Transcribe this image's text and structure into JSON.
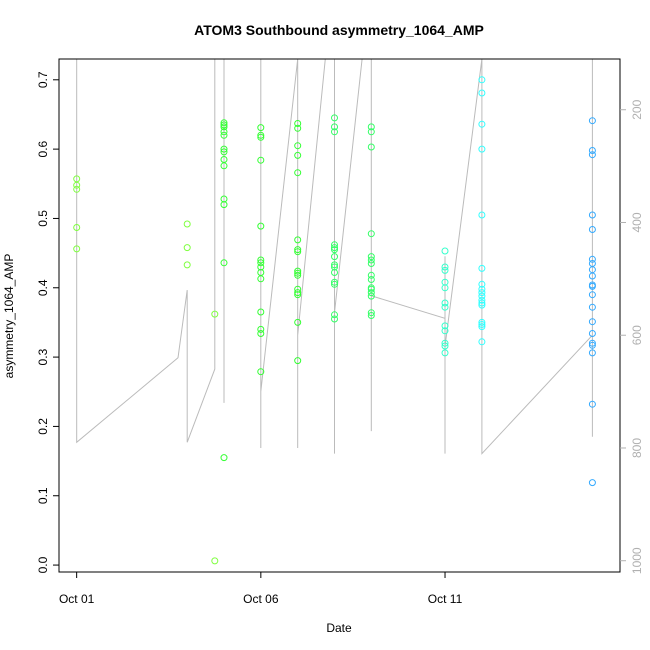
{
  "chart_data": {
    "type": "scatter",
    "title": "ATOM3 Southbound asymmetry_1064_AMP",
    "xlabel": "Date",
    "ylabel": "asymmetry_1064_AMP",
    "ylabel_right": "",
    "grid": false,
    "legend": "none",
    "x_ticks": [
      {
        "value": "2016-10-01",
        "label": "Oct 01"
      },
      {
        "value": "2016-10-06",
        "label": "Oct 06"
      },
      {
        "value": "2016-10-11",
        "label": "Oct 11"
      }
    ],
    "xlim": [
      "2016-10-00 12:30",
      "2016-10-15 18:00"
    ],
    "ylim": [
      -0.01,
      0.73
    ],
    "y_ticks": [
      0.0,
      0.1,
      0.2,
      0.3,
      0.4,
      0.5,
      0.6,
      0.7
    ],
    "y_right_lim": [
      1020,
      110
    ],
    "y_right_ticks": [
      200,
      400,
      600,
      800,
      1000
    ],
    "series": [
      {
        "color": "#7fff3f",
        "points": [
          [
            "2016-10-01 00:00",
            0.548
          ],
          [
            "2016-10-01 00:00",
            0.557
          ],
          [
            "2016-10-01 00:00",
            0.542
          ],
          [
            "2016-10-01 00:00",
            0.487
          ],
          [
            "2016-10-01 00:00",
            0.456
          ],
          [
            "2016-10-04 00:00",
            0.492
          ],
          [
            "2016-10-04 00:00",
            0.458
          ],
          [
            "2016-10-04 00:00",
            0.433
          ],
          [
            "2016-10-04 18:00",
            0.362
          ],
          [
            "2016-10-04 18:00",
            0.006
          ]
        ]
      },
      {
        "color": "#33ff33",
        "points": [
          [
            "2016-10-05 00:00",
            0.638
          ],
          [
            "2016-10-05 00:00",
            0.635
          ],
          [
            "2016-10-05 00:00",
            0.632
          ],
          [
            "2016-10-05 00:00",
            0.625
          ],
          [
            "2016-10-05 00:00",
            0.62
          ],
          [
            "2016-10-05 00:00",
            0.6
          ],
          [
            "2016-10-05 00:00",
            0.596
          ],
          [
            "2016-10-05 00:00",
            0.585
          ],
          [
            "2016-10-05 00:00",
            0.576
          ],
          [
            "2016-10-05 00:00",
            0.528
          ],
          [
            "2016-10-05 00:00",
            0.52
          ],
          [
            "2016-10-05 00:00",
            0.436
          ],
          [
            "2016-10-05 00:00",
            0.155
          ],
          [
            "2016-10-06 00:00",
            0.631
          ],
          [
            "2016-10-06 00:00",
            0.62
          ],
          [
            "2016-10-06 00:00",
            0.617
          ],
          [
            "2016-10-06 00:00",
            0.584
          ],
          [
            "2016-10-06 00:00",
            0.489
          ],
          [
            "2016-10-06 00:00",
            0.44
          ],
          [
            "2016-10-06 00:00",
            0.436
          ],
          [
            "2016-10-06 00:00",
            0.43
          ],
          [
            "2016-10-06 00:00",
            0.422
          ],
          [
            "2016-10-06 00:00",
            0.413
          ],
          [
            "2016-10-06 00:00",
            0.365
          ],
          [
            "2016-10-06 00:00",
            0.34
          ],
          [
            "2016-10-06 00:00",
            0.334
          ],
          [
            "2016-10-06 00:00",
            0.279
          ],
          [
            "2016-10-07 00:00",
            0.637
          ],
          [
            "2016-10-07 00:00",
            0.63
          ],
          [
            "2016-10-07 00:00",
            0.605
          ],
          [
            "2016-10-07 00:00",
            0.591
          ],
          [
            "2016-10-07 00:00",
            0.566
          ],
          [
            "2016-10-07 00:00",
            0.469
          ],
          [
            "2016-10-07 00:00",
            0.455
          ],
          [
            "2016-10-07 00:00",
            0.452
          ],
          [
            "2016-10-07 00:00",
            0.424
          ],
          [
            "2016-10-07 00:00",
            0.421
          ],
          [
            "2016-10-07 00:00",
            0.418
          ],
          [
            "2016-10-07 00:00",
            0.398
          ],
          [
            "2016-10-07 00:00",
            0.393
          ],
          [
            "2016-10-07 00:00",
            0.39
          ],
          [
            "2016-10-07 00:00",
            0.35
          ],
          [
            "2016-10-07 00:00",
            0.295
          ]
        ]
      },
      {
        "color": "#33ff66",
        "points": [
          [
            "2016-10-08 00:00",
            0.645
          ],
          [
            "2016-10-08 00:00",
            0.632
          ],
          [
            "2016-10-08 00:00",
            0.625
          ],
          [
            "2016-10-08 00:00",
            0.462
          ],
          [
            "2016-10-08 00:00",
            0.458
          ],
          [
            "2016-10-08 00:00",
            0.455
          ],
          [
            "2016-10-08 00:00",
            0.445
          ],
          [
            "2016-10-08 00:00",
            0.433
          ],
          [
            "2016-10-08 00:00",
            0.43
          ],
          [
            "2016-10-08 00:00",
            0.422
          ],
          [
            "2016-10-08 00:00",
            0.408
          ],
          [
            "2016-10-08 00:00",
            0.405
          ],
          [
            "2016-10-08 00:00",
            0.361
          ],
          [
            "2016-10-08 00:00",
            0.355
          ],
          [
            "2016-10-09 00:00",
            0.632
          ],
          [
            "2016-10-09 00:00",
            0.625
          ],
          [
            "2016-10-09 00:00",
            0.603
          ],
          [
            "2016-10-09 00:00",
            0.478
          ],
          [
            "2016-10-09 00:00",
            0.445
          ],
          [
            "2016-10-09 00:00",
            0.44
          ],
          [
            "2016-10-09 00:00",
            0.435
          ],
          [
            "2016-10-09 00:00",
            0.418
          ],
          [
            "2016-10-09 00:00",
            0.412
          ],
          [
            "2016-10-09 00:00",
            0.4
          ],
          [
            "2016-10-09 00:00",
            0.398
          ],
          [
            "2016-10-09 00:00",
            0.393
          ],
          [
            "2016-10-09 00:00",
            0.388
          ],
          [
            "2016-10-09 00:00",
            0.364
          ],
          [
            "2016-10-09 00:00",
            0.36
          ]
        ]
      },
      {
        "color": "#33ffcc",
        "points": [
          [
            "2016-10-11 00:00",
            0.453
          ],
          [
            "2016-10-11 00:00",
            0.43
          ],
          [
            "2016-10-11 00:00",
            0.425
          ],
          [
            "2016-10-11 00:00",
            0.408
          ],
          [
            "2016-10-11 00:00",
            0.4
          ],
          [
            "2016-10-11 00:00",
            0.378
          ],
          [
            "2016-10-11 00:00",
            0.372
          ],
          [
            "2016-10-11 00:00",
            0.345
          ],
          [
            "2016-10-11 00:00",
            0.338
          ],
          [
            "2016-10-11 00:00",
            0.32
          ],
          [
            "2016-10-11 00:00",
            0.316
          ],
          [
            "2016-10-11 00:00",
            0.306
          ]
        ]
      },
      {
        "color": "#33ffff",
        "points": [
          [
            "2016-10-12 00:00",
            0.7
          ],
          [
            "2016-10-12 00:00",
            0.681
          ],
          [
            "2016-10-12 00:00",
            0.636
          ],
          [
            "2016-10-12 00:00",
            0.6
          ],
          [
            "2016-10-12 00:00",
            0.505
          ],
          [
            "2016-10-12 00:00",
            0.428
          ],
          [
            "2016-10-12 00:00",
            0.405
          ],
          [
            "2016-10-12 00:00",
            0.398
          ],
          [
            "2016-10-12 00:00",
            0.393
          ],
          [
            "2016-10-12 00:00",
            0.388
          ],
          [
            "2016-10-12 00:00",
            0.382
          ],
          [
            "2016-10-12 00:00",
            0.378
          ],
          [
            "2016-10-12 00:00",
            0.375
          ],
          [
            "2016-10-12 00:00",
            0.35
          ],
          [
            "2016-10-12 00:00",
            0.347
          ],
          [
            "2016-10-12 00:00",
            0.344
          ],
          [
            "2016-10-12 00:00",
            0.322
          ]
        ]
      },
      {
        "color": "#33aaff",
        "points": [
          [
            "2016-10-15 00:00",
            0.641
          ],
          [
            "2016-10-15 00:00",
            0.598
          ],
          [
            "2016-10-15 00:00",
            0.592
          ],
          [
            "2016-10-15 00:00",
            0.505
          ],
          [
            "2016-10-15 00:00",
            0.484
          ],
          [
            "2016-10-15 00:00",
            0.441
          ],
          [
            "2016-10-15 00:00",
            0.435
          ],
          [
            "2016-10-15 00:00",
            0.426
          ],
          [
            "2016-10-15 00:00",
            0.417
          ],
          [
            "2016-10-15 00:00",
            0.404
          ],
          [
            "2016-10-15 00:00",
            0.402
          ],
          [
            "2016-10-15 00:00",
            0.39
          ],
          [
            "2016-10-15 00:00",
            0.372
          ],
          [
            "2016-10-15 00:00",
            0.351
          ],
          [
            "2016-10-15 00:00",
            0.334
          ],
          [
            "2016-10-15 00:00",
            0.32
          ],
          [
            "2016-10-15 00:00",
            0.317
          ],
          [
            "2016-10-15 00:00",
            0.306
          ],
          [
            "2016-10-15 00:00",
            0.232
          ],
          [
            "2016-10-15 00:00",
            0.119
          ]
        ]
      }
    ],
    "altitude_trace": {
      "color": "#bbbbbb",
      "points": [
        [
          "2016-10-01 00:00",
          110
        ],
        [
          "2016-10-01 00:00",
          790
        ],
        [
          "2016-10-03 18:00",
          640
        ],
        [
          "2016-10-04 00:00",
          520
        ],
        [
          "2016-10-04 00:00",
          790
        ],
        [
          "2016-10-04 18:00",
          660
        ],
        [
          "2016-10-04 18:00",
          110
        ],
        [
          "2016-10-05 00:00",
          110
        ],
        [
          "2016-10-05 00:00",
          720
        ],
        [
          "2016-10-05 00:00",
          110
        ],
        [
          "2016-10-05 00:00",
          700
        ],
        [
          "2016-10-05 00:00",
          110
        ],
        [
          "2016-10-06 00:00",
          110
        ],
        [
          "2016-10-06 00:00",
          760
        ],
        [
          "2016-10-06 00:00",
          110
        ],
        [
          "2016-10-06 00:00",
          800
        ],
        [
          "2016-10-06 00:00",
          700
        ],
        [
          "2016-10-07 00:00",
          110
        ],
        [
          "2016-10-07 00:00",
          760
        ],
        [
          "2016-10-07 00:00",
          110
        ],
        [
          "2016-10-07 00:00",
          800
        ],
        [
          "2016-10-07 00:00",
          600
        ],
        [
          "2016-10-07 18:00",
          110
        ],
        [
          "2016-10-08 00:00",
          110
        ],
        [
          "2016-10-08 00:00",
          780
        ],
        [
          "2016-10-08 00:00",
          110
        ],
        [
          "2016-10-08 00:00",
          810
        ],
        [
          "2016-10-08 00:00",
          560
        ],
        [
          "2016-10-08 18:00",
          110
        ],
        [
          "2016-10-09 00:00",
          110
        ],
        [
          "2016-10-09 00:00",
          760
        ],
        [
          "2016-10-09 00:00",
          110
        ],
        [
          "2016-10-09 00:00",
          770
        ],
        [
          "2016-10-09 00:00",
          530
        ],
        [
          "2016-10-11 00:00",
          570
        ],
        [
          "2016-10-11 00:00",
          480
        ],
        [
          "2016-10-11 00:00",
          770
        ],
        [
          "2016-10-11 00:00",
          460
        ],
        [
          "2016-10-11 00:00",
          810
        ],
        [
          "2016-10-11 00:00",
          620
        ],
        [
          "2016-10-12 00:00",
          110
        ],
        [
          "2016-10-12 00:00",
          720
        ],
        [
          "2016-10-12 00:00",
          110
        ],
        [
          "2016-10-12 00:00",
          760
        ],
        [
          "2016-10-12 00:00",
          630
        ],
        [
          "2016-10-12 00:00",
          810
        ],
        [
          "2016-10-15 00:00",
          600
        ],
        [
          "2016-10-15 00:00",
          110
        ],
        [
          "2016-10-15 00:00",
          780
        ],
        [
          "2016-10-15 00:00",
          110
        ],
        [
          "2016-10-15 00:00",
          780
        ]
      ]
    }
  }
}
